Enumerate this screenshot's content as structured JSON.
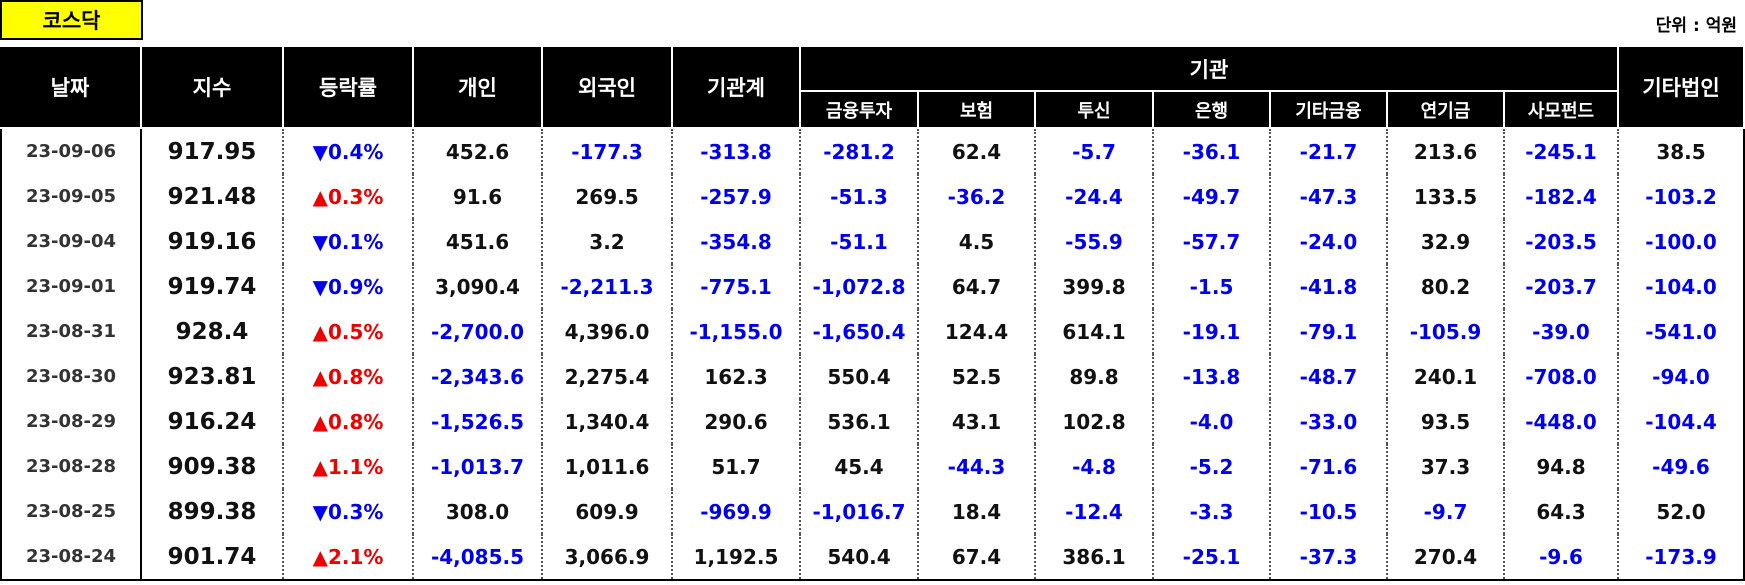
{
  "label": "코스닥",
  "unit": "단위 : 억원",
  "table": {
    "header": [
      "날짜",
      "지수",
      "등락률",
      "개인",
      "외국인",
      "기관계",
      "기관",
      "기타법인"
    ],
    "subheader": [
      "금융투자",
      "보험",
      "투신",
      "은행",
      "기타금융",
      "연기금",
      "사모펀드"
    ],
    "rows": [
      [
        "23-09-06",
        "917.95",
        "▼0.4%",
        "452.6",
        "-177.3",
        "-313.8",
        "-281.2",
        "62.4",
        "-5.7",
        "-36.1",
        "-21.7",
        "213.6",
        "-245.1",
        "38.5"
      ],
      [
        "23-09-05",
        "921.48",
        "▲0.3%",
        "91.6",
        "269.5",
        "-257.9",
        "-51.3",
        "-36.2",
        "-24.4",
        "-49.7",
        "-47.3",
        "133.5",
        "-182.4",
        "-103.2"
      ],
      [
        "23-09-04",
        "919.16",
        "▼0.1%",
        "451.6",
        "3.2",
        "-354.8",
        "-51.1",
        "4.5",
        "-55.9",
        "-57.7",
        "-24.0",
        "32.9",
        "-203.5",
        "-100.0"
      ],
      [
        "23-09-01",
        "919.74",
        "▼0.9%",
        "3,090.4",
        "-2,211.3",
        "-775.1",
        "-1,072.8",
        "64.7",
        "399.8",
        "-1.5",
        "-41.8",
        "80.2",
        "-203.7",
        "-104.0"
      ],
      [
        "23-08-31",
        "928.4",
        "▲0.5%",
        "-2,700.0",
        "4,396.0",
        "-1,155.0",
        "-1,650.4",
        "124.4",
        "614.1",
        "-19.1",
        "-79.1",
        "-105.9",
        "-39.0",
        "-541.0"
      ],
      [
        "23-08-30",
        "923.81",
        "▲0.8%",
        "-2,343.6",
        "2,275.4",
        "162.3",
        "550.4",
        "52.5",
        "89.8",
        "-13.8",
        "-48.7",
        "240.1",
        "-708.0",
        "-94.0"
      ],
      [
        "23-08-29",
        "916.24",
        "▲0.8%",
        "-1,526.5",
        "1,340.4",
        "290.6",
        "536.1",
        "43.1",
        "102.8",
        "-4.0",
        "-33.0",
        "93.5",
        "-448.0",
        "-104.4"
      ],
      [
        "23-08-28",
        "909.38",
        "▲1.1%",
        "-1,013.7",
        "1,011.6",
        "51.7",
        "45.4",
        "-44.3",
        "-4.8",
        "-5.2",
        "-71.6",
        "37.3",
        "94.8",
        "-49.6"
      ],
      [
        "23-08-25",
        "899.38",
        "▼0.3%",
        "308.0",
        "609.9",
        "-969.9",
        "-1,016.7",
        "18.4",
        "-12.4",
        "-3.3",
        "-10.5",
        "-9.7",
        "64.3",
        "52.0"
      ],
      [
        "23-08-24",
        "901.74",
        "▲2.1%",
        "-4,085.5",
        "3,066.9",
        "1,192.5",
        "540.4",
        "67.4",
        "386.1",
        "-25.1",
        "-37.3",
        "270.4",
        "-9.6",
        "-173.9"
      ]
    ]
  }
}
